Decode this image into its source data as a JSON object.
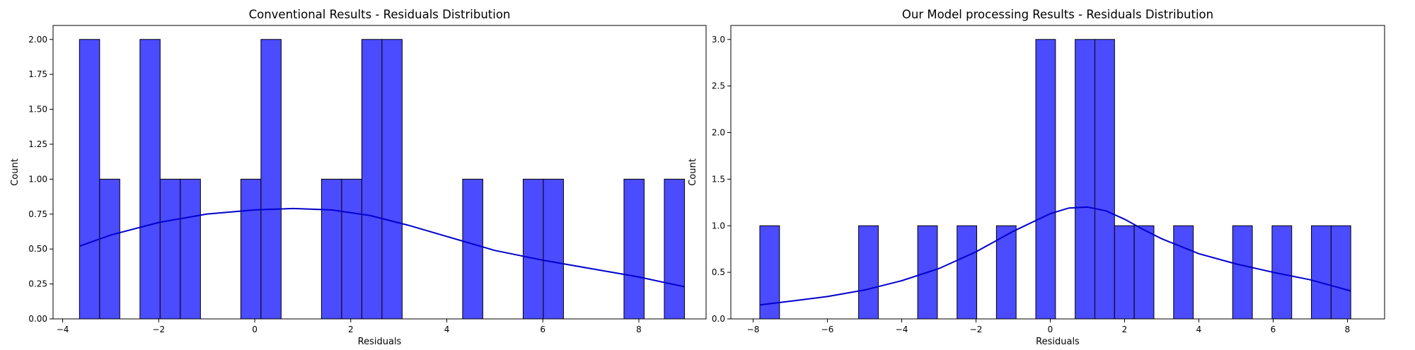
{
  "chart_data": [
    {
      "type": "bar",
      "subtype": "histogram-with-kde",
      "title": "Conventional Results - Residuals Distribution",
      "xlabel": "Residuals",
      "ylabel": "Count",
      "xlim": [
        -4.2,
        9.4
      ],
      "ylim": [
        0,
        2.1
      ],
      "x_ticks": [
        -4,
        -2,
        0,
        2,
        4,
        6,
        8
      ],
      "y_ticks": [
        0.0,
        0.25,
        0.5,
        0.75,
        1.0,
        1.25,
        1.5,
        1.75,
        2.0
      ],
      "y_tick_labels": [
        "0.00",
        "0.25",
        "0.50",
        "0.75",
        "1.00",
        "1.25",
        "1.50",
        "1.75",
        "2.00"
      ],
      "grid": false,
      "bar_color": "#4B4BFF",
      "line_color": "#0000CC",
      "bins": [
        {
          "x0": -3.65,
          "x1": -3.23,
          "count": 2
        },
        {
          "x0": -3.23,
          "x1": -2.81,
          "count": 1
        },
        {
          "x0": -2.39,
          "x1": -1.97,
          "count": 2
        },
        {
          "x0": -1.97,
          "x1": -1.55,
          "count": 1
        },
        {
          "x0": -1.55,
          "x1": -1.13,
          "count": 1
        },
        {
          "x0": -0.29,
          "x1": 0.13,
          "count": 1
        },
        {
          "x0": 0.13,
          "x1": 0.55,
          "count": 2
        },
        {
          "x0": 1.39,
          "x1": 1.81,
          "count": 1
        },
        {
          "x0": 1.81,
          "x1": 2.23,
          "count": 1
        },
        {
          "x0": 2.23,
          "x1": 2.65,
          "count": 2
        },
        {
          "x0": 2.65,
          "x1": 3.07,
          "count": 2
        },
        {
          "x0": 4.33,
          "x1": 4.75,
          "count": 1
        },
        {
          "x0": 5.59,
          "x1": 6.01,
          "count": 1
        },
        {
          "x0": 6.01,
          "x1": 6.43,
          "count": 1
        },
        {
          "x0": 7.69,
          "x1": 8.11,
          "count": 1
        },
        {
          "x0": 8.53,
          "x1": 8.95,
          "count": 1
        }
      ],
      "kde": {
        "x": [
          -3.65,
          -3.0,
          -2.0,
          -1.0,
          0.0,
          0.8,
          1.6,
          2.4,
          3.2,
          4.0,
          5.0,
          6.0,
          7.0,
          8.0,
          8.95
        ],
        "y": [
          0.52,
          0.6,
          0.69,
          0.75,
          0.78,
          0.79,
          0.78,
          0.74,
          0.67,
          0.59,
          0.49,
          0.42,
          0.36,
          0.3,
          0.23
        ]
      }
    },
    {
      "type": "bar",
      "subtype": "histogram-with-kde",
      "title": "Our Model processing Results - Residuals Distribution",
      "xlabel": "Residuals",
      "ylabel": "Count",
      "xlim": [
        -8.6,
        9.0
      ],
      "ylim": [
        0,
        3.15
      ],
      "x_ticks": [
        -8,
        -6,
        -4,
        -2,
        0,
        2,
        4,
        6,
        8
      ],
      "y_ticks": [
        0.0,
        0.5,
        1.0,
        1.5,
        2.0,
        2.5,
        3.0
      ],
      "y_tick_labels": [
        "0.0",
        "0.5",
        "1.0",
        "1.5",
        "2.0",
        "2.5",
        "3.0"
      ],
      "grid": false,
      "bar_color": "#4B4BFF",
      "line_color": "#0000CC",
      "bins": [
        {
          "x0": -7.82,
          "x1": -7.29,
          "count": 1
        },
        {
          "x0": -5.16,
          "x1": -4.63,
          "count": 1
        },
        {
          "x0": -3.57,
          "x1": -3.04,
          "count": 1
        },
        {
          "x0": -2.51,
          "x1": -1.98,
          "count": 1
        },
        {
          "x0": -1.45,
          "x1": -0.92,
          "count": 1
        },
        {
          "x0": -0.39,
          "x1": 0.14,
          "count": 3
        },
        {
          "x0": 0.67,
          "x1": 1.2,
          "count": 3
        },
        {
          "x0": 1.2,
          "x1": 1.73,
          "count": 3
        },
        {
          "x0": 1.73,
          "x1": 2.26,
          "count": 1
        },
        {
          "x0": 2.26,
          "x1": 2.79,
          "count": 1
        },
        {
          "x0": 3.32,
          "x1": 3.85,
          "count": 1
        },
        {
          "x0": 4.91,
          "x1": 5.44,
          "count": 1
        },
        {
          "x0": 5.97,
          "x1": 6.5,
          "count": 1
        },
        {
          "x0": 7.03,
          "x1": 7.56,
          "count": 1
        },
        {
          "x0": 7.56,
          "x1": 8.09,
          "count": 1
        }
      ],
      "kde": {
        "x": [
          -7.82,
          -7.0,
          -6.0,
          -5.0,
          -4.0,
          -3.0,
          -2.0,
          -1.0,
          0.0,
          0.5,
          1.0,
          1.5,
          2.0,
          2.5,
          3.0,
          4.0,
          5.0,
          6.0,
          7.0,
          8.09
        ],
        "y": [
          0.15,
          0.19,
          0.24,
          0.31,
          0.41,
          0.54,
          0.72,
          0.94,
          1.13,
          1.19,
          1.2,
          1.16,
          1.07,
          0.96,
          0.86,
          0.7,
          0.59,
          0.5,
          0.42,
          0.3
        ]
      }
    }
  ]
}
